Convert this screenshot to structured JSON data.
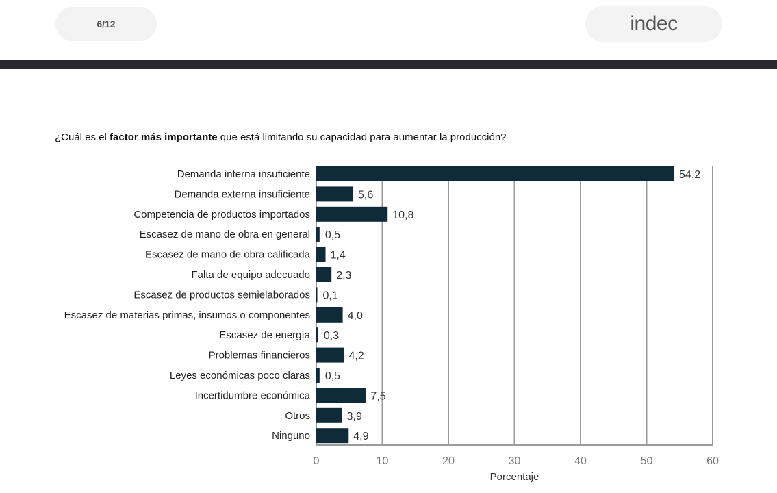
{
  "header": {
    "page_indicator": "6/12",
    "logo_text": "indec"
  },
  "question": {
    "prefix": "¿Cuál es el ",
    "bold": "factor más importante",
    "suffix": " que está limitando su capacidad para aumentar la producción?"
  },
  "colors": {
    "bar": "#0f2a38",
    "grid": "#9a9a9a",
    "header_band": "#2a2a2e"
  },
  "chart_data": {
    "type": "bar",
    "orientation": "horizontal",
    "categories": [
      "Demanda interna insuficiente",
      "Demanda externa insuficiente",
      "Competencia de productos importados",
      "Escasez de mano de obra en general",
      "Escasez de mano de obra calificada",
      "Falta de equipo adecuado",
      "Escasez de productos semielaborados",
      "Escasez de materias primas, insumos o componentes",
      "Escasez de energía",
      "Problemas financieros",
      "Leyes económicas poco claras",
      "Incertidumbre económica",
      "Otros",
      "Ninguno"
    ],
    "values": [
      54.2,
      5.6,
      10.8,
      0.5,
      1.4,
      2.3,
      0.1,
      4.0,
      0.3,
      4.2,
      0.5,
      7.5,
      3.9,
      4.9
    ],
    "value_labels": [
      "54,2",
      "5,6",
      "10,8",
      "0,5",
      "1,4",
      "2,3",
      "0,1",
      "4,0",
      "0,3",
      "4,2",
      "0,5",
      "7,5",
      "3,9",
      "4,9"
    ],
    "xlabel": "Porcentaje",
    "xlim": [
      0,
      60
    ],
    "xticks": [
      "0",
      "10",
      "20",
      "30",
      "40",
      "50",
      "60"
    ],
    "grid": true
  }
}
